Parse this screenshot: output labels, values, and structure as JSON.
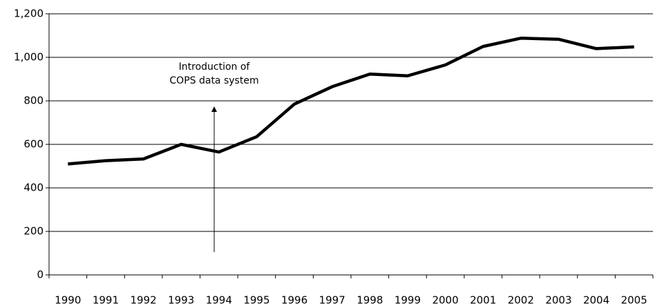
{
  "chart_data": {
    "type": "line",
    "categories": [
      "1990",
      "1991",
      "1992",
      "1993",
      "1994",
      "1995",
      "1996",
      "1997",
      "1998",
      "1999",
      "2000",
      "2001",
      "2002",
      "2003",
      "2004",
      "2005"
    ],
    "series": [
      {
        "color": "#000000",
        "values": [
          510,
          525,
          533,
          600,
          565,
          635,
          785,
          865,
          923,
          915,
          965,
          1050,
          1088,
          1083,
          1040,
          1048
        ]
      }
    ],
    "ylim": [
      0,
      1200
    ],
    "yticks": [
      0,
      200,
      400,
      600,
      800,
      {
        "value": 1000,
        "label": "1,000"
      },
      {
        "value": 1200,
        "label": "1,200"
      }
    ],
    "grid": true,
    "annotation": [
      "Introduction of",
      "COPS data system"
    ]
  }
}
